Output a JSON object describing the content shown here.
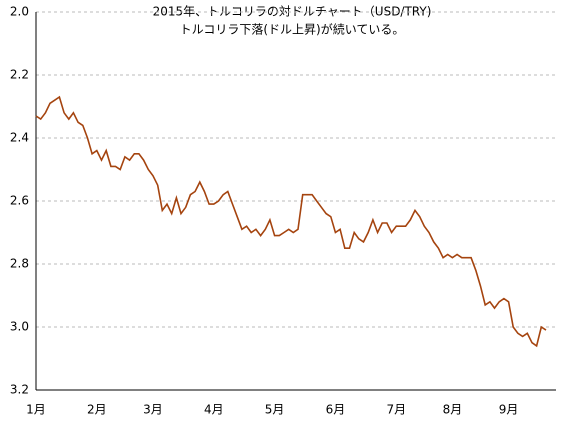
{
  "chart_data": {
    "type": "line",
    "title": "2015年、トルコリラの対ドルチャート（USD/TRY)",
    "subtitle": "トルコリラ下落(ドル上昇)が続いている。",
    "categories": [
      "1月",
      null,
      null,
      null,
      null,
      null,
      null,
      null,
      null,
      null,
      null,
      null,
      null,
      "2月",
      null,
      null,
      null,
      null,
      null,
      null,
      null,
      null,
      null,
      null,
      null,
      "3月",
      null,
      null,
      null,
      null,
      null,
      null,
      null,
      null,
      null,
      null,
      null,
      null,
      "4月",
      null,
      null,
      null,
      null,
      null,
      null,
      null,
      null,
      null,
      null,
      null,
      null,
      "5月",
      null,
      null,
      null,
      null,
      null,
      null,
      null,
      null,
      null,
      null,
      null,
      null,
      "6月",
      null,
      null,
      null,
      null,
      null,
      null,
      null,
      null,
      null,
      null,
      null,
      null,
      "7月",
      null,
      null,
      null,
      null,
      null,
      null,
      null,
      null,
      null,
      null,
      null,
      "8月",
      null,
      null,
      null,
      null,
      null,
      null,
      null,
      null,
      null,
      null,
      null,
      "9月",
      null,
      null,
      null,
      null,
      null,
      null,
      null,
      null
    ],
    "values": [
      2.33,
      2.34,
      2.32,
      2.29,
      2.28,
      2.27,
      2.32,
      2.34,
      2.32,
      2.35,
      2.36,
      2.4,
      2.45,
      2.44,
      2.47,
      2.44,
      2.49,
      2.49,
      2.5,
      2.46,
      2.47,
      2.45,
      2.45,
      2.47,
      2.5,
      2.52,
      2.55,
      2.63,
      2.61,
      2.64,
      2.59,
      2.64,
      2.62,
      2.58,
      2.57,
      2.54,
      2.57,
      2.61,
      2.61,
      2.6,
      2.58,
      2.57,
      2.61,
      2.65,
      2.69,
      2.68,
      2.7,
      2.69,
      2.71,
      2.69,
      2.66,
      2.71,
      2.71,
      2.7,
      2.69,
      2.7,
      2.69,
      2.58,
      2.58,
      2.58,
      2.6,
      2.62,
      2.64,
      2.65,
      2.7,
      2.69,
      2.75,
      2.75,
      2.7,
      2.72,
      2.73,
      2.7,
      2.66,
      2.7,
      2.67,
      2.67,
      2.7,
      2.68,
      2.68,
      2.68,
      2.66,
      2.63,
      2.65,
      2.68,
      2.7,
      2.73,
      2.75,
      2.78,
      2.77,
      2.78,
      2.77,
      2.78,
      2.78,
      2.78,
      2.82,
      2.87,
      2.93,
      2.92,
      2.94,
      2.92,
      2.91,
      2.92,
      3.0,
      3.02,
      3.03,
      3.02,
      3.05,
      3.06,
      3.0,
      3.01
    ],
    "color": "#a5440f",
    "ylim": [
      2.0,
      3.2
    ],
    "y_inverted": true,
    "yticks": [
      {
        "value": 2.0,
        "label": "2.0"
      },
      2.2,
      2.4,
      2.6,
      2.8,
      {
        "value": 3.0,
        "label": "3.0"
      },
      3.2
    ],
    "grid": true
  }
}
